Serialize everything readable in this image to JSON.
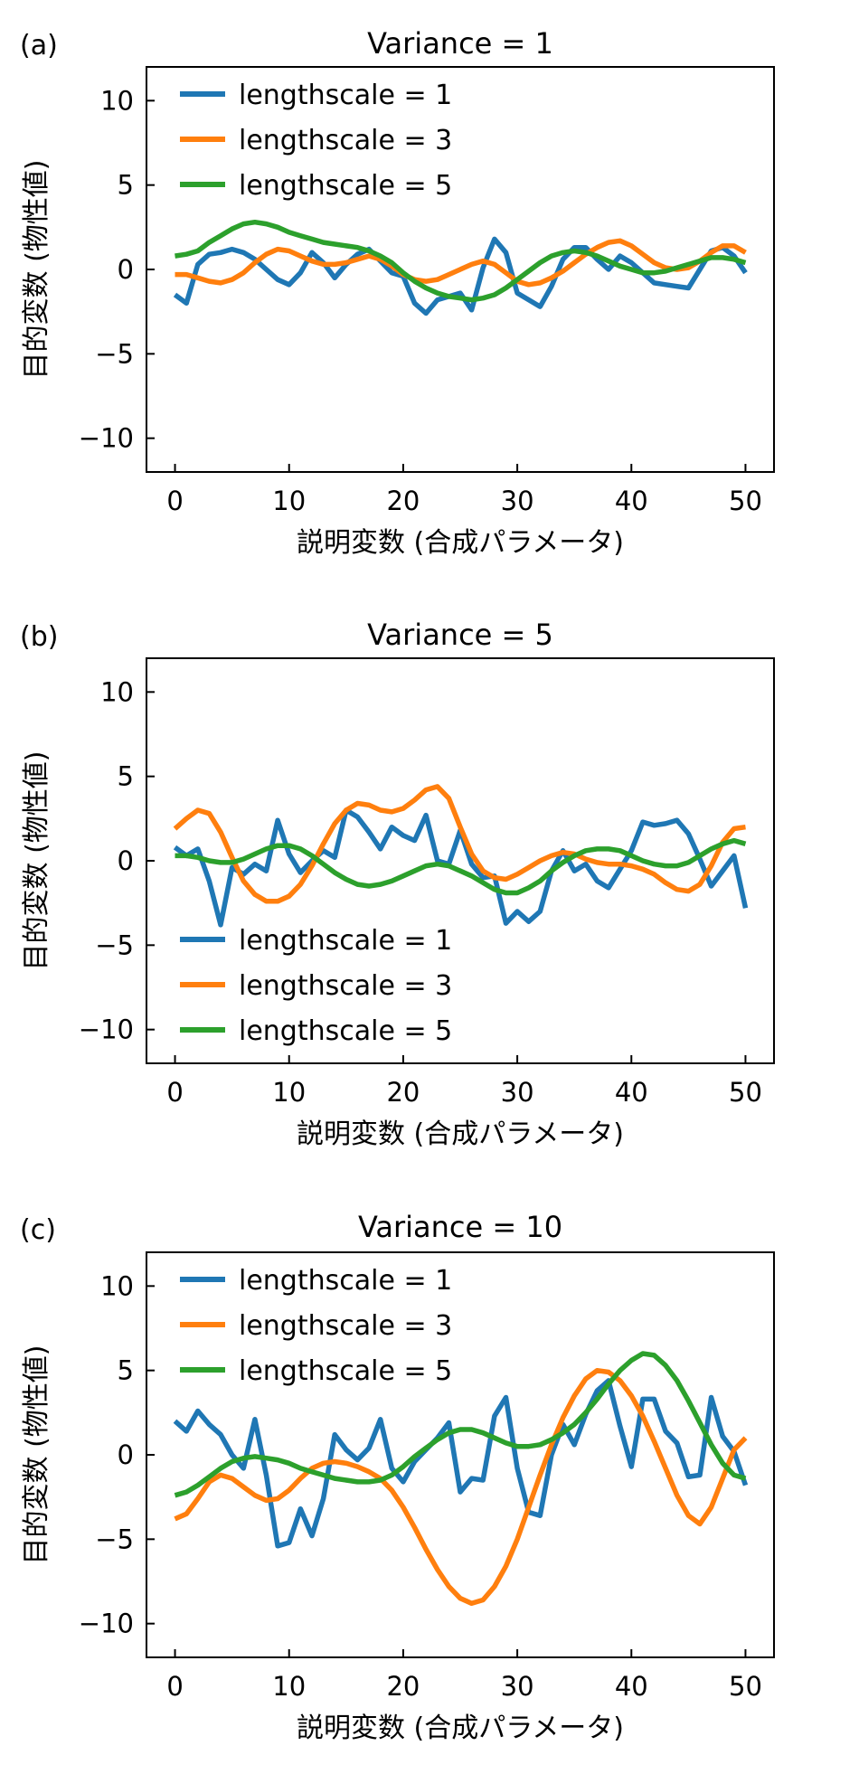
{
  "chart_data": [
    {
      "type": "line",
      "panel_label": "(a)",
      "title": "Variance = 1",
      "xlabel": "説明変数 (合成パラメータ)",
      "ylabel": "目的変数 (物性値)",
      "xlim": [
        -2.5,
        52.5
      ],
      "ylim": [
        -12,
        12
      ],
      "xticks": [
        0,
        10,
        20,
        30,
        40,
        50
      ],
      "yticks": [
        10,
        5,
        0,
        -5,
        -10
      ],
      "ytick_labels": [
        "10",
        "5",
        "0",
        "−5",
        "−10"
      ],
      "legend_position": "top-left",
      "series": [
        {
          "name": "lengthscale = 1",
          "color": "#1f77b4",
          "x": [
            0,
            1,
            2,
            3,
            4,
            5,
            6,
            7,
            8,
            9,
            10,
            11,
            12,
            13,
            14,
            15,
            16,
            17,
            18,
            19,
            20,
            21,
            22,
            23,
            24,
            25,
            26,
            27,
            28,
            29,
            30,
            31,
            32,
            33,
            34,
            35,
            36,
            37,
            38,
            39,
            40,
            41,
            42,
            43,
            44,
            45,
            46,
            47,
            48,
            49,
            50
          ],
          "y": [
            -1.5,
            -2.0,
            0.3,
            0.9,
            1.0,
            1.2,
            1.0,
            0.6,
            0.0,
            -0.6,
            -0.9,
            -0.2,
            1.0,
            0.4,
            -0.5,
            0.3,
            0.9,
            1.2,
            0.5,
            -0.2,
            -0.4,
            -2.0,
            -2.6,
            -1.8,
            -1.6,
            -1.4,
            -2.4,
            0.1,
            1.8,
            1.0,
            -1.4,
            -1.8,
            -2.2,
            -1.0,
            0.6,
            1.3,
            1.3,
            0.6,
            0.0,
            0.8,
            0.4,
            -0.2,
            -0.8,
            -0.9,
            -1.0,
            -1.1,
            0.0,
            1.1,
            1.3,
            0.8,
            -0.2
          ]
        },
        {
          "name": "lengthscale = 3",
          "color": "#ff7f0e",
          "x": [
            0,
            1,
            2,
            3,
            4,
            5,
            6,
            7,
            8,
            9,
            10,
            11,
            12,
            13,
            14,
            15,
            16,
            17,
            18,
            19,
            20,
            21,
            22,
            23,
            24,
            25,
            26,
            27,
            28,
            29,
            30,
            31,
            32,
            33,
            34,
            35,
            36,
            37,
            38,
            39,
            40,
            41,
            42,
            43,
            44,
            45,
            46,
            47,
            48,
            49,
            50
          ],
          "y": [
            -0.3,
            -0.3,
            -0.5,
            -0.7,
            -0.8,
            -0.6,
            -0.2,
            0.4,
            0.9,
            1.2,
            1.1,
            0.8,
            0.5,
            0.3,
            0.3,
            0.4,
            0.6,
            0.8,
            0.6,
            0.2,
            -0.3,
            -0.6,
            -0.7,
            -0.6,
            -0.3,
            0.0,
            0.3,
            0.5,
            0.3,
            -0.2,
            -0.7,
            -0.9,
            -0.8,
            -0.5,
            -0.1,
            0.4,
            0.9,
            1.3,
            1.6,
            1.7,
            1.4,
            0.9,
            0.4,
            0.1,
            0.0,
            0.1,
            0.5,
            1.0,
            1.4,
            1.4,
            1.0
          ]
        },
        {
          "name": "lengthscale = 5",
          "color": "#2ca02c",
          "x": [
            0,
            1,
            2,
            3,
            4,
            5,
            6,
            7,
            8,
            9,
            10,
            11,
            12,
            13,
            14,
            15,
            16,
            17,
            18,
            19,
            20,
            21,
            22,
            23,
            24,
            25,
            26,
            27,
            28,
            29,
            30,
            31,
            32,
            33,
            34,
            35,
            36,
            37,
            38,
            39,
            40,
            41,
            42,
            43,
            44,
            45,
            46,
            47,
            48,
            49,
            50
          ],
          "y": [
            0.8,
            0.9,
            1.1,
            1.6,
            2.0,
            2.4,
            2.7,
            2.8,
            2.7,
            2.5,
            2.2,
            2.0,
            1.8,
            1.6,
            1.5,
            1.4,
            1.3,
            1.1,
            0.8,
            0.4,
            -0.2,
            -0.7,
            -1.1,
            -1.4,
            -1.6,
            -1.7,
            -1.8,
            -1.7,
            -1.5,
            -1.1,
            -0.6,
            -0.1,
            0.4,
            0.8,
            1.0,
            1.1,
            1.0,
            0.8,
            0.5,
            0.2,
            0.0,
            -0.2,
            -0.2,
            -0.1,
            0.1,
            0.3,
            0.5,
            0.7,
            0.7,
            0.6,
            0.4
          ]
        }
      ]
    },
    {
      "type": "line",
      "panel_label": "(b)",
      "title": "Variance = 5",
      "xlabel": "説明変数 (合成パラメータ)",
      "ylabel": "目的変数 (物性値)",
      "xlim": [
        -2.5,
        52.5
      ],
      "ylim": [
        -12,
        12
      ],
      "xticks": [
        0,
        10,
        20,
        30,
        40,
        50
      ],
      "yticks": [
        10,
        5,
        0,
        -5,
        -10
      ],
      "ytick_labels": [
        "10",
        "5",
        "0",
        "−5",
        "−10"
      ],
      "legend_position": "bottom-left",
      "series": [
        {
          "name": "lengthscale = 1",
          "color": "#1f77b4",
          "x": [
            0,
            1,
            2,
            3,
            4,
            5,
            6,
            7,
            8,
            9,
            10,
            11,
            12,
            13,
            14,
            15,
            16,
            17,
            18,
            19,
            20,
            21,
            22,
            23,
            24,
            25,
            26,
            27,
            28,
            29,
            30,
            31,
            32,
            33,
            34,
            35,
            36,
            37,
            38,
            39,
            40,
            41,
            42,
            43,
            44,
            45,
            46,
            47,
            48,
            49,
            50
          ],
          "y": [
            0.8,
            0.3,
            0.7,
            -1.2,
            -3.8,
            -0.4,
            -0.8,
            -0.2,
            -0.6,
            2.4,
            0.4,
            -0.7,
            0.0,
            0.6,
            0.2,
            3.0,
            2.6,
            1.7,
            0.7,
            2.0,
            1.5,
            1.2,
            2.7,
            0.0,
            -0.2,
            1.8,
            -0.2,
            -1.0,
            -0.9,
            -3.7,
            -3.0,
            -3.6,
            -3.0,
            -0.6,
            0.6,
            -0.6,
            -0.2,
            -1.2,
            -1.6,
            -0.5,
            0.6,
            2.3,
            2.1,
            2.2,
            2.4,
            1.6,
            0.1,
            -1.5,
            -0.6,
            0.3,
            -2.8
          ]
        },
        {
          "name": "lengthscale = 3",
          "color": "#ff7f0e",
          "x": [
            0,
            1,
            2,
            3,
            4,
            5,
            6,
            7,
            8,
            9,
            10,
            11,
            12,
            13,
            14,
            15,
            16,
            17,
            18,
            19,
            20,
            21,
            22,
            23,
            24,
            25,
            26,
            27,
            28,
            29,
            30,
            31,
            32,
            33,
            34,
            35,
            36,
            37,
            38,
            39,
            40,
            41,
            42,
            43,
            44,
            45,
            46,
            47,
            48,
            49,
            50
          ],
          "y": [
            1.9,
            2.5,
            3.0,
            2.8,
            1.7,
            0.2,
            -1.2,
            -2.0,
            -2.4,
            -2.4,
            -2.1,
            -1.4,
            -0.3,
            1.0,
            2.2,
            3.0,
            3.4,
            3.3,
            3.0,
            2.9,
            3.1,
            3.6,
            4.2,
            4.4,
            3.7,
            2.0,
            0.4,
            -0.6,
            -1.0,
            -1.1,
            -0.8,
            -0.4,
            0.0,
            0.3,
            0.5,
            0.4,
            0.1,
            -0.1,
            -0.2,
            -0.2,
            -0.3,
            -0.5,
            -0.8,
            -1.3,
            -1.7,
            -1.8,
            -1.4,
            -0.3,
            1.1,
            1.9,
            2.0
          ]
        },
        {
          "name": "lengthscale = 5",
          "color": "#2ca02c",
          "x": [
            0,
            1,
            2,
            3,
            4,
            5,
            6,
            7,
            8,
            9,
            10,
            11,
            12,
            13,
            14,
            15,
            16,
            17,
            18,
            19,
            20,
            21,
            22,
            23,
            24,
            25,
            26,
            27,
            28,
            29,
            30,
            31,
            32,
            33,
            34,
            35,
            36,
            37,
            38,
            39,
            40,
            41,
            42,
            43,
            44,
            45,
            46,
            47,
            48,
            49,
            50
          ],
          "y": [
            0.3,
            0.3,
            0.2,
            0.0,
            -0.1,
            -0.1,
            0.1,
            0.4,
            0.7,
            0.9,
            0.9,
            0.7,
            0.3,
            -0.2,
            -0.7,
            -1.1,
            -1.4,
            -1.5,
            -1.4,
            -1.2,
            -0.9,
            -0.6,
            -0.3,
            -0.2,
            -0.3,
            -0.6,
            -0.9,
            -1.3,
            -1.7,
            -1.9,
            -1.9,
            -1.6,
            -1.2,
            -0.6,
            -0.1,
            0.3,
            0.6,
            0.7,
            0.7,
            0.6,
            0.3,
            0.0,
            -0.2,
            -0.3,
            -0.3,
            -0.1,
            0.3,
            0.7,
            1.0,
            1.2,
            1.0
          ]
        }
      ]
    },
    {
      "type": "line",
      "panel_label": "(c)",
      "title": "Variance = 10",
      "xlabel": "説明変数 (合成パラメータ)",
      "ylabel": "目的変数 (物性値)",
      "xlim": [
        -2.5,
        52.5
      ],
      "ylim": [
        -12,
        12
      ],
      "xticks": [
        0,
        10,
        20,
        30,
        40,
        50
      ],
      "yticks": [
        10,
        5,
        0,
        -5,
        -10
      ],
      "ytick_labels": [
        "10",
        "5",
        "0",
        "−5",
        "−10"
      ],
      "legend_position": "top-left",
      "series": [
        {
          "name": "lengthscale = 1",
          "color": "#1f77b4",
          "x": [
            0,
            1,
            2,
            3,
            4,
            5,
            6,
            7,
            8,
            9,
            10,
            11,
            12,
            13,
            14,
            15,
            16,
            17,
            18,
            19,
            20,
            21,
            22,
            23,
            24,
            25,
            26,
            27,
            28,
            29,
            30,
            31,
            32,
            33,
            34,
            35,
            36,
            37,
            38,
            39,
            40,
            41,
            42,
            43,
            44,
            45,
            46,
            47,
            48,
            49,
            50
          ],
          "y": [
            2.0,
            1.4,
            2.6,
            1.8,
            1.2,
            0.0,
            -0.8,
            2.1,
            -1.2,
            -5.4,
            -5.2,
            -3.2,
            -4.8,
            -2.6,
            1.2,
            0.3,
            -0.3,
            0.4,
            2.1,
            -0.8,
            -1.6,
            -0.4,
            0.3,
            1.0,
            1.9,
            -2.2,
            -1.4,
            -1.5,
            2.3,
            3.4,
            -0.8,
            -3.4,
            -3.6,
            0.0,
            1.8,
            0.6,
            2.4,
            3.8,
            4.4,
            1.7,
            -0.7,
            3.3,
            3.3,
            1.4,
            0.7,
            -1.3,
            -1.2,
            3.4,
            1.1,
            0.2,
            -1.8
          ]
        },
        {
          "name": "lengthscale = 3",
          "color": "#ff7f0e",
          "x": [
            0,
            1,
            2,
            3,
            4,
            5,
            6,
            7,
            8,
            9,
            10,
            11,
            12,
            13,
            14,
            15,
            16,
            17,
            18,
            19,
            20,
            21,
            22,
            23,
            24,
            25,
            26,
            27,
            28,
            29,
            30,
            31,
            32,
            33,
            34,
            35,
            36,
            37,
            38,
            39,
            40,
            41,
            42,
            43,
            44,
            45,
            46,
            47,
            48,
            49,
            50
          ],
          "y": [
            -3.8,
            -3.5,
            -2.6,
            -1.6,
            -1.2,
            -1.4,
            -1.9,
            -2.4,
            -2.7,
            -2.6,
            -2.1,
            -1.4,
            -0.8,
            -0.5,
            -0.4,
            -0.5,
            -0.7,
            -1.0,
            -1.4,
            -2.1,
            -3.1,
            -4.3,
            -5.6,
            -6.8,
            -7.8,
            -8.5,
            -8.8,
            -8.6,
            -7.8,
            -6.6,
            -5.0,
            -3.1,
            -1.2,
            0.6,
            2.2,
            3.5,
            4.5,
            5.0,
            4.9,
            4.4,
            3.5,
            2.3,
            0.8,
            -0.8,
            -2.4,
            -3.6,
            -4.1,
            -3.1,
            -1.4,
            0.3,
            1.0
          ]
        },
        {
          "name": "lengthscale = 5",
          "color": "#2ca02c",
          "x": [
            0,
            1,
            2,
            3,
            4,
            5,
            6,
            7,
            8,
            9,
            10,
            11,
            12,
            13,
            14,
            15,
            16,
            17,
            18,
            19,
            20,
            21,
            22,
            23,
            24,
            25,
            26,
            27,
            28,
            29,
            30,
            31,
            32,
            33,
            34,
            35,
            36,
            37,
            38,
            39,
            40,
            41,
            42,
            43,
            44,
            45,
            46,
            47,
            48,
            49,
            50
          ],
          "y": [
            -2.4,
            -2.2,
            -1.8,
            -1.3,
            -0.8,
            -0.4,
            -0.2,
            -0.1,
            -0.2,
            -0.3,
            -0.5,
            -0.8,
            -1.0,
            -1.2,
            -1.4,
            -1.5,
            -1.6,
            -1.6,
            -1.5,
            -1.2,
            -0.7,
            -0.1,
            0.4,
            0.9,
            1.3,
            1.5,
            1.5,
            1.3,
            1.0,
            0.7,
            0.5,
            0.5,
            0.6,
            0.9,
            1.3,
            1.8,
            2.5,
            3.3,
            4.2,
            5.0,
            5.6,
            6.0,
            5.9,
            5.3,
            4.4,
            3.2,
            1.9,
            0.6,
            -0.5,
            -1.2,
            -1.4
          ]
        }
      ]
    }
  ]
}
